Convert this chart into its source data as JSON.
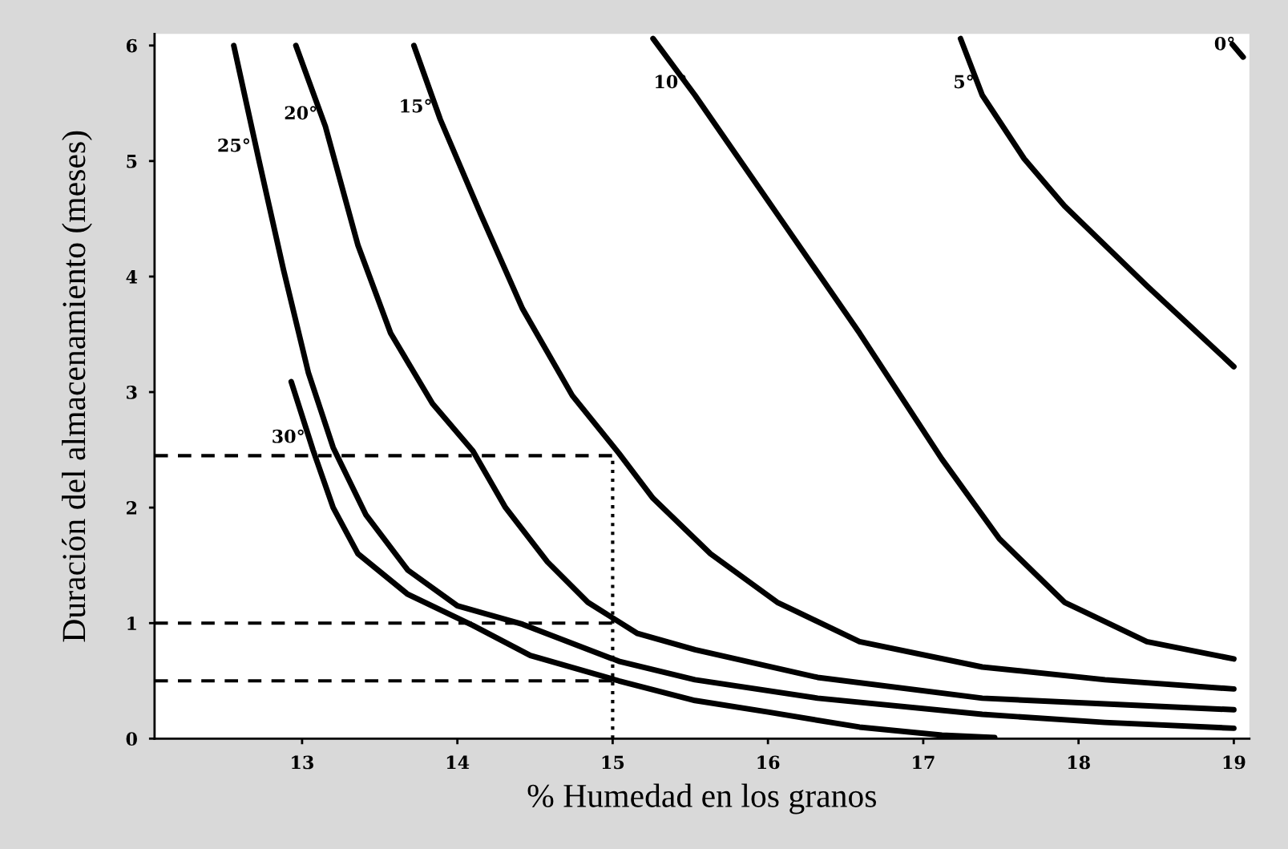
{
  "chart_data": {
    "type": "line",
    "xlabel": "% Humedad en los granos",
    "ylabel": "Duración del almacenamiento (meses)",
    "xlim": [
      12.05,
      19.1
    ],
    "ylim": [
      0,
      6.1
    ],
    "xticks": [
      13,
      14,
      15,
      16,
      17,
      18,
      19
    ],
    "yticks": [
      0,
      1,
      2,
      3,
      4,
      5,
      6
    ],
    "grid": false,
    "legend": false,
    "marker": "none",
    "series": [
      {
        "name": "30°",
        "color": "#000000",
        "line_style": "solid",
        "x": [
          12.93,
          13.07,
          13.2,
          13.36,
          13.68,
          14.1,
          14.47,
          15.04,
          15.53,
          16.0,
          16.59,
          17.12,
          17.46
        ],
        "values": [
          3.09,
          2.5,
          2.0,
          1.6,
          1.25,
          0.98,
          0.72,
          0.5,
          0.33,
          0.23,
          0.1,
          0.03,
          0.01
        ]
      },
      {
        "name": "25°",
        "color": "#000000",
        "line_style": "solid",
        "x": [
          12.56,
          12.72,
          12.88,
          13.04,
          13.2,
          13.41,
          13.68,
          14.0,
          14.42,
          15.04,
          15.53,
          16.32,
          17.38,
          18.17,
          19.0
        ],
        "values": [
          6.0,
          5.02,
          4.06,
          3.17,
          2.52,
          1.94,
          1.46,
          1.15,
          0.99,
          0.67,
          0.51,
          0.35,
          0.21,
          0.14,
          0.09
        ]
      },
      {
        "name": "20°",
        "color": "#000000",
        "line_style": "solid",
        "x": [
          12.96,
          13.15,
          13.36,
          13.57,
          13.84,
          14.1,
          14.31,
          14.58,
          14.84,
          15.16,
          15.53,
          16.32,
          17.38,
          19.0
        ],
        "values": [
          6.0,
          5.3,
          4.27,
          3.51,
          2.9,
          2.49,
          2.0,
          1.53,
          1.18,
          0.91,
          0.77,
          0.53,
          0.35,
          0.25
        ]
      },
      {
        "name": "15°",
        "color": "#000000",
        "line_style": "solid",
        "x": [
          13.72,
          13.89,
          14.15,
          14.42,
          14.74,
          15.04,
          15.26,
          15.63,
          16.06,
          16.59,
          17.38,
          18.17,
          19.0
        ],
        "values": [
          6.0,
          5.36,
          4.54,
          3.72,
          2.97,
          2.47,
          2.08,
          1.6,
          1.18,
          0.84,
          0.62,
          0.51,
          0.43
        ]
      },
      {
        "name": "10°",
        "color": "#000000",
        "line_style": "solid",
        "x": [
          15.26,
          15.53,
          16.06,
          16.59,
          17.12,
          17.49,
          17.91,
          18.44,
          19.0
        ],
        "values": [
          6.06,
          5.57,
          4.54,
          3.51,
          2.42,
          1.73,
          1.18,
          0.84,
          0.69
        ]
      },
      {
        "name": "5°",
        "color": "#000000",
        "line_style": "solid",
        "x": [
          17.24,
          17.38,
          17.65,
          17.91,
          18.44,
          19.0
        ],
        "values": [
          6.06,
          5.57,
          5.02,
          4.61,
          3.92,
          3.22
        ]
      },
      {
        "name": "0°",
        "color": "#000000",
        "line_style": "solid",
        "x": [
          18.99,
          19.06
        ],
        "values": [
          6.01,
          5.9
        ]
      },
      {
        "color": "#000000",
        "line_style": "dashed",
        "x": [
          12.05,
          15.0
        ],
        "values": [
          2.45,
          2.45
        ]
      },
      {
        "color": "#000000",
        "line_style": "dashed",
        "x": [
          12.05,
          15.0
        ],
        "values": [
          1.0,
          1.0
        ]
      },
      {
        "color": "#000000",
        "line_style": "dashed",
        "x": [
          12.05,
          15.0
        ],
        "values": [
          0.5,
          0.5
        ]
      },
      {
        "color": "#000000",
        "line_style": "dotted",
        "x": [
          15.0,
          15.0
        ],
        "values": [
          0.0,
          2.45
        ]
      }
    ]
  }
}
